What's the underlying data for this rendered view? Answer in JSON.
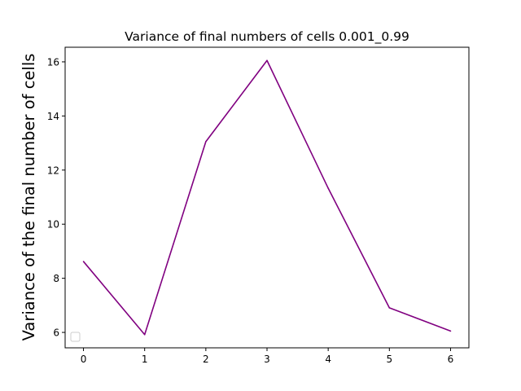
{
  "chart_data": {
    "type": "line",
    "title": "Variance of final numbers of cells 0.001_0.99",
    "xlabel": "",
    "ylabel": "Variance of the final number of cells",
    "x": [
      0,
      1,
      2,
      3,
      4,
      5,
      6
    ],
    "series": [
      {
        "values": [
          8.62,
          5.92,
          13.05,
          16.05,
          11.33,
          6.91,
          6.05
        ],
        "color": "#800080"
      }
    ],
    "xlim": [
      -0.3,
      6.3
    ],
    "ylim": [
      5.43,
      16.54
    ],
    "xticks": [
      0,
      1,
      2,
      3,
      4,
      5,
      6
    ],
    "yticks": [
      6,
      8,
      10,
      12,
      14,
      16
    ],
    "grid": false,
    "legend": {
      "placement": "lower-left",
      "entries": []
    }
  }
}
